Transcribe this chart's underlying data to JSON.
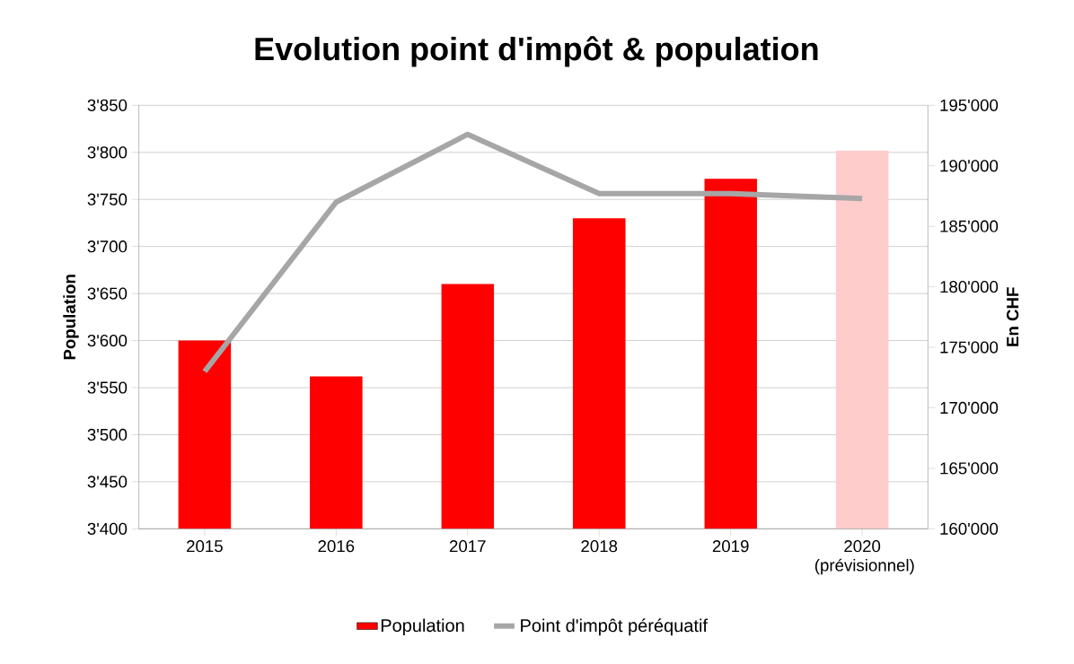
{
  "chart_data": {
    "type": "bar",
    "title": "Evolution point d'impôt & population",
    "ylabel": "Population",
    "y2label": "En CHF",
    "categories": [
      "2015",
      "2016",
      "2017",
      "2018",
      "2019",
      "2020 (prévisionnel)"
    ],
    "series": [
      {
        "name": "Population",
        "color": "#ff0000",
        "colors": [
          "#ff0000",
          "#ff0000",
          "#ff0000",
          "#ff0000",
          "#ff0000",
          "#ffcccc"
        ],
        "values": [
          3600,
          3562,
          3660,
          3730,
          3772,
          3802
        ]
      },
      {
        "name": "Point d'impôt péréquatif",
        "type": "line",
        "axis": "y2",
        "color": "#a6a6a6",
        "values": [
          173000,
          187000,
          192600,
          187700,
          187700,
          187300
        ]
      }
    ],
    "ylim": [
      3400,
      3850
    ],
    "yticks": [
      {
        "value": 3400,
        "label": "3'400"
      },
      {
        "value": 3450,
        "label": "3'450"
      },
      {
        "value": 3500,
        "label": "3'500"
      },
      {
        "value": 3550,
        "label": "3'550"
      },
      {
        "value": 3600,
        "label": "3'600"
      },
      {
        "value": 3650,
        "label": "3'650"
      },
      {
        "value": 3700,
        "label": "3'700"
      },
      {
        "value": 3750,
        "label": "3'750"
      },
      {
        "value": 3800,
        "label": "3'800"
      },
      {
        "value": 3850,
        "label": "3'850"
      }
    ],
    "y2lim": [
      160000,
      195000
    ],
    "y2ticks": [
      {
        "value": 160000,
        "label": "160'000"
      },
      {
        "value": 165000,
        "label": "165'000"
      },
      {
        "value": 170000,
        "label": "170'000"
      },
      {
        "value": 175000,
        "label": "175'000"
      },
      {
        "value": 180000,
        "label": "180'000"
      },
      {
        "value": 185000,
        "label": "185'000"
      },
      {
        "value": 190000,
        "label": "190'000"
      },
      {
        "value": 195000,
        "label": "195'000"
      }
    ],
    "grid": "y",
    "legend": "bottom"
  }
}
